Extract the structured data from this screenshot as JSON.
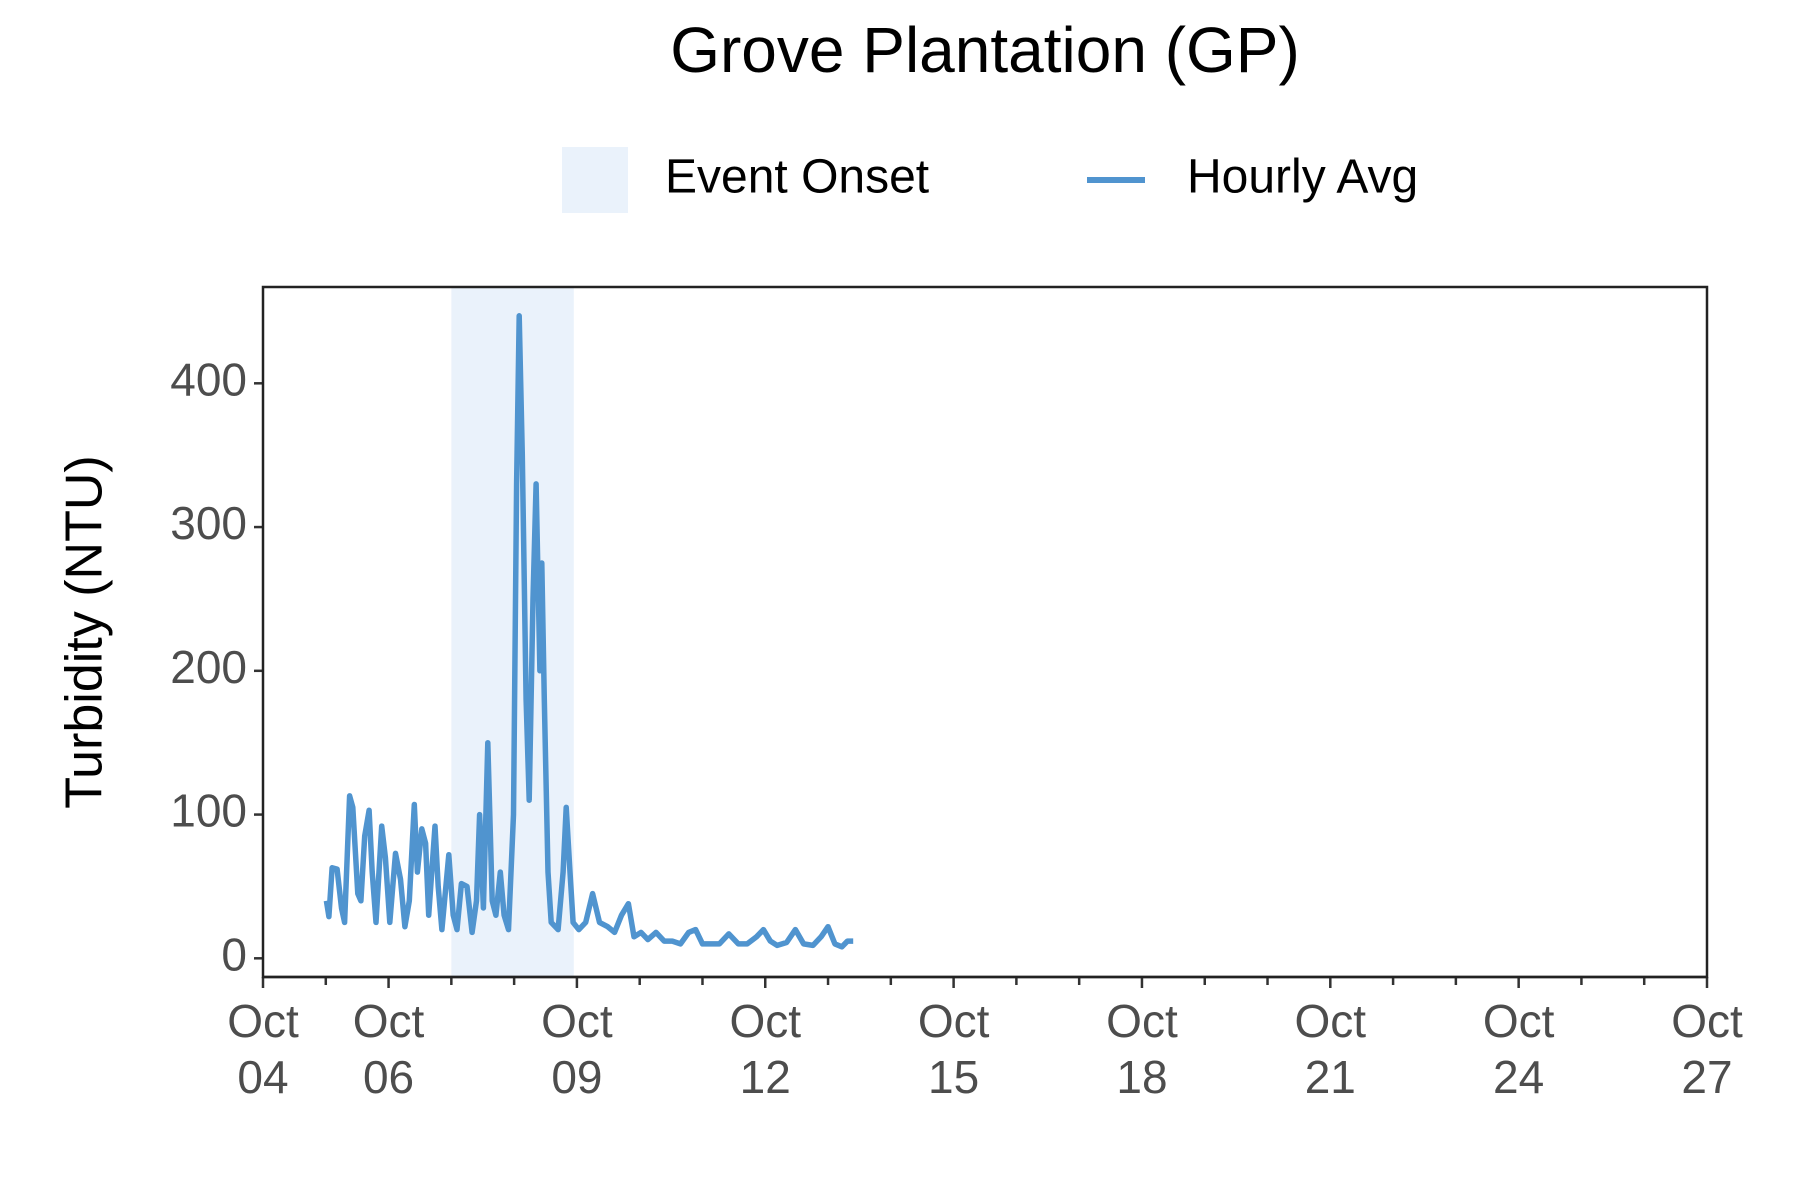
{
  "chart_data": {
    "type": "line",
    "title": "Grove Plantation (GP)",
    "ylabel": "Turbidity (NTU)",
    "xlim": [
      4,
      27
    ],
    "ylim": [
      -13,
      467
    ],
    "xticks": [
      {
        "value": 4,
        "label": "Oct\n04"
      },
      {
        "value": 6,
        "label": "Oct\n06"
      },
      {
        "value": 9,
        "label": "Oct\n09"
      },
      {
        "value": 12,
        "label": "Oct\n12"
      },
      {
        "value": 15,
        "label": "Oct\n15"
      },
      {
        "value": 18,
        "label": "Oct\n18"
      },
      {
        "value": 21,
        "label": "Oct\n21"
      },
      {
        "value": 24,
        "label": "Oct\n24"
      },
      {
        "value": 27,
        "label": "Oct\n27"
      }
    ],
    "xminorticks": [
      5,
      7,
      8,
      10,
      11,
      13,
      14,
      16,
      17,
      19,
      20,
      22,
      23,
      25,
      26
    ],
    "yticks": [
      0,
      100,
      200,
      300,
      400
    ],
    "grid": false,
    "legend": "top",
    "shaded_regions": [
      {
        "name": "Event Onset",
        "x": [
          7,
          8.95
        ],
        "color": "#eaf2fb"
      }
    ],
    "series": [
      {
        "name": "Hourly Avg",
        "color": "#5094cf",
        "x": [
          5.01,
          5.05,
          5.1,
          5.18,
          5.25,
          5.3,
          5.38,
          5.43,
          5.51,
          5.56,
          5.62,
          5.69,
          5.74,
          5.8,
          5.89,
          5.95,
          6.02,
          6.11,
          6.19,
          6.26,
          6.33,
          6.41,
          6.46,
          6.53,
          6.59,
          6.64,
          6.74,
          6.79,
          6.85,
          6.96,
          7.03,
          7.09,
          7.16,
          7.25,
          7.33,
          7.4,
          7.45,
          7.51,
          7.58,
          7.65,
          7.71,
          7.78,
          7.84,
          7.91,
          7.99,
          8.04,
          8.08,
          8.13,
          8.19,
          8.24,
          8.3,
          8.35,
          8.41,
          8.44,
          8.48,
          8.54,
          8.59,
          8.7,
          8.78,
          8.83,
          8.89,
          8.94,
          9.03,
          9.14,
          9.25,
          9.36,
          9.49,
          9.6,
          9.71,
          9.82,
          9.91,
          10.02,
          10.13,
          10.26,
          10.39,
          10.52,
          10.65,
          10.78,
          10.89,
          11.0,
          11.13,
          11.27,
          11.42,
          11.57,
          11.71,
          11.86,
          11.97,
          12.08,
          12.19,
          12.34,
          12.48,
          12.61,
          12.76,
          12.89,
          13.0,
          13.11,
          13.22,
          13.31,
          13.4
        ],
        "values": [
          40,
          29,
          63,
          62,
          35,
          25,
          113,
          105,
          45,
          40,
          85,
          103,
          60,
          25,
          92,
          70,
          25,
          73,
          55,
          22,
          40,
          107,
          60,
          90,
          80,
          30,
          92,
          50,
          20,
          72,
          30,
          20,
          52,
          50,
          18,
          40,
          100,
          35,
          150,
          40,
          30,
          60,
          30,
          20,
          100,
          330,
          447,
          350,
          180,
          110,
          250,
          330,
          200,
          275,
          180,
          60,
          25,
          20,
          60,
          105,
          60,
          25,
          20,
          25,
          45,
          25,
          22,
          18,
          30,
          38,
          15,
          18,
          13,
          18,
          12,
          12,
          10,
          18,
          20,
          10,
          10,
          10,
          17,
          10,
          10,
          15,
          20,
          12,
          9,
          11,
          20,
          10,
          9,
          15,
          22,
          10,
          8,
          12,
          12
        ]
      }
    ]
  }
}
